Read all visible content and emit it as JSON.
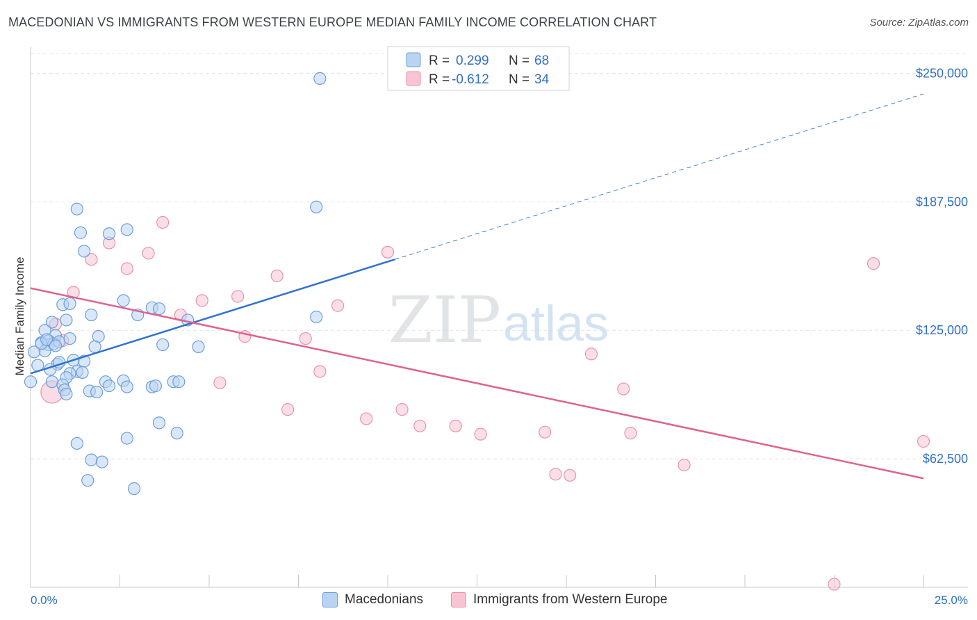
{
  "chart_data": {
    "type": "scatter",
    "title": "MACEDONIAN VS IMMIGRANTS FROM WESTERN EUROPE MEDIAN FAMILY INCOME CORRELATION CHART",
    "source": "Source: ZipAtlas.com",
    "ylabel": "Median Family Income",
    "xlabel": "",
    "x_range": [
      0,
      25
    ],
    "y_range": [
      0,
      262000
    ],
    "x_tick_labels": {
      "min": "0.0%",
      "max": "25.0%"
    },
    "y_ticks": [
      {
        "value": 62500,
        "label": "$62,500"
      },
      {
        "value": 125000,
        "label": "$125,000"
      },
      {
        "value": 187500,
        "label": "$187,500"
      },
      {
        "value": 250000,
        "label": "$250,000"
      }
    ],
    "watermark": {
      "zip": "ZIP",
      "atlas": "atlas"
    },
    "legend_box": [
      {
        "r_label": "R =",
        "r_value": "0.299",
        "n_label": "N =",
        "n_value": "68"
      },
      {
        "r_label": "R =",
        "r_value": "-0.612",
        "n_label": "N =",
        "n_value": "34"
      }
    ],
    "colors": {
      "blue_fill": "#b9d3f2",
      "blue_stroke": "#6c9fdc",
      "blue_line": "#2f72d0",
      "pink_fill": "#f8c4d3",
      "pink_stroke": "#e991ad",
      "pink_line": "#e0628f",
      "value_text": "#2e6fcb",
      "grid": "#e2e4e8"
    },
    "series": [
      {
        "name": "Macedonians",
        "color_key": "blue",
        "trend": {
          "x0": 0,
          "y0": 104000,
          "x1": 10.2,
          "y1": 159500,
          "dash_x1": 25,
          "dash_y1": 240000
        },
        "points": [
          [
            8.1,
            247500
          ],
          [
            8.0,
            185000
          ],
          [
            1.3,
            184000
          ],
          [
            1.4,
            172500
          ],
          [
            2.2,
            172000
          ],
          [
            2.7,
            174000
          ],
          [
            1.5,
            163500
          ],
          [
            2.6,
            139500
          ],
          [
            0.9,
            137500
          ],
          [
            1.1,
            138000
          ],
          [
            3.4,
            136000
          ],
          [
            3.6,
            135500
          ],
          [
            1.7,
            132500
          ],
          [
            3.0,
            132500
          ],
          [
            1.0,
            130000
          ],
          [
            0.6,
            129000
          ],
          [
            4.4,
            130000
          ],
          [
            8.0,
            131500
          ],
          [
            0.4,
            125000
          ],
          [
            0.7,
            122500
          ],
          [
            1.9,
            122000
          ],
          [
            0.3,
            119000
          ],
          [
            0.5,
            120000
          ],
          [
            0.5,
            118000
          ],
          [
            0.4,
            115000
          ],
          [
            1.8,
            117000
          ],
          [
            3.7,
            118000
          ],
          [
            4.7,
            117000
          ],
          [
            0.1,
            114500
          ],
          [
            0.2,
            108000
          ],
          [
            0.75,
            108500
          ],
          [
            0.8,
            109500
          ],
          [
            1.2,
            110500
          ],
          [
            1.5,
            110000
          ],
          [
            0.55,
            106000
          ],
          [
            1.3,
            105000
          ],
          [
            1.45,
            104500
          ],
          [
            1.1,
            104000
          ],
          [
            1.0,
            102000
          ],
          [
            0.6,
            100000
          ],
          [
            0.9,
            98500
          ],
          [
            0.0,
            100000
          ],
          [
            2.1,
            100000
          ],
          [
            2.6,
            100500
          ],
          [
            2.2,
            98000
          ],
          [
            2.7,
            97500
          ],
          [
            3.4,
            97500
          ],
          [
            3.5,
            98000
          ],
          [
            4.0,
            100000
          ],
          [
            4.15,
            100000
          ],
          [
            0.95,
            96000
          ],
          [
            1.0,
            94000
          ],
          [
            1.65,
            95500
          ],
          [
            1.85,
            95000
          ],
          [
            3.6,
            80000
          ],
          [
            4.1,
            75000
          ],
          [
            2.7,
            72500
          ],
          [
            1.3,
            70000
          ],
          [
            1.7,
            62000
          ],
          [
            2.0,
            61000
          ],
          [
            1.6,
            52000
          ],
          [
            2.9,
            48000
          ],
          [
            0.65,
            118500
          ],
          [
            0.8,
            119500
          ],
          [
            1.1,
            121000
          ],
          [
            0.3,
            118500
          ],
          [
            0.45,
            120500
          ],
          [
            0.7,
            117500
          ]
        ]
      },
      {
        "name": "Immigrants from Western Europe",
        "color_key": "pink",
        "trend": {
          "x0": 0,
          "y0": 145500,
          "x1": 25,
          "y1": 53000
        },
        "points": [
          [
            3.7,
            177500
          ],
          [
            2.2,
            167500
          ],
          [
            3.3,
            162500
          ],
          [
            10.0,
            163000
          ],
          [
            1.7,
            159500
          ],
          [
            2.7,
            155000
          ],
          [
            6.9,
            151500
          ],
          [
            23.6,
            157500
          ],
          [
            1.2,
            143500
          ],
          [
            5.8,
            141500
          ],
          [
            4.8,
            139500
          ],
          [
            8.6,
            137000
          ],
          [
            4.2,
            132500
          ],
          [
            0.7,
            128000
          ],
          [
            0.9,
            120000
          ],
          [
            6.0,
            122000
          ],
          [
            7.7,
            121000
          ],
          [
            15.7,
            113500
          ],
          [
            8.1,
            105000
          ],
          [
            5.3,
            99500
          ],
          [
            16.6,
            96500
          ],
          [
            7.2,
            86500
          ],
          [
            9.4,
            82000
          ],
          [
            10.4,
            86500
          ],
          [
            10.9,
            78500
          ],
          [
            11.9,
            78500
          ],
          [
            12.6,
            74500
          ],
          [
            14.4,
            75500
          ],
          [
            16.8,
            75000
          ],
          [
            25.0,
            71000
          ],
          [
            14.7,
            55000
          ],
          [
            15.1,
            54500
          ],
          [
            18.3,
            59500
          ],
          [
            22.5,
            1500
          ]
        ]
      }
    ]
  }
}
